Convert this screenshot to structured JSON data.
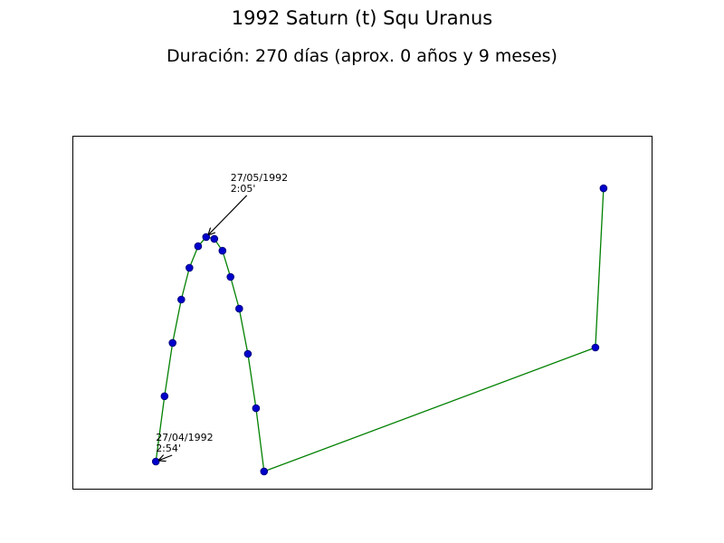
{
  "chart_data": {
    "type": "line",
    "title": "1992 Saturn (t) Squ Uranus",
    "subtitle": "Duración: 270 días (aprox. 0 años y 9 meses)",
    "xlabel": "",
    "ylabel": "",
    "axes_ticks_visible": false,
    "grid": false,
    "xlim": [
      0,
      100
    ],
    "ylim": [
      0,
      100
    ],
    "line_color": "#008000",
    "marker_color": "#0000cc",
    "marker_edge": "#000080",
    "series": [
      {
        "x": [
          14.4,
          15.9,
          17.3,
          18.8,
          20.2,
          21.7,
          23.1,
          24.5,
          25.9,
          27.3,
          28.8,
          30.3,
          31.7,
          33.1,
          90.3,
          91.7
        ],
        "y": [
          7.7,
          26.2,
          41.3,
          53.6,
          62.6,
          68.7,
          71.3,
          70.8,
          67.4,
          60.0,
          51.0,
          38.2,
          22.8,
          4.9,
          40.0,
          85.1
        ]
      }
    ],
    "annotations": [
      {
        "line1": "27/04/1992",
        "line2": "2:54'",
        "point_index": 0,
        "text_x": 14.4,
        "text_y": 13.6
      },
      {
        "line1": "27/05/1992",
        "line2": "2:05'",
        "point_index": 6,
        "text_x": 27.3,
        "text_y": 87.2
      }
    ]
  }
}
